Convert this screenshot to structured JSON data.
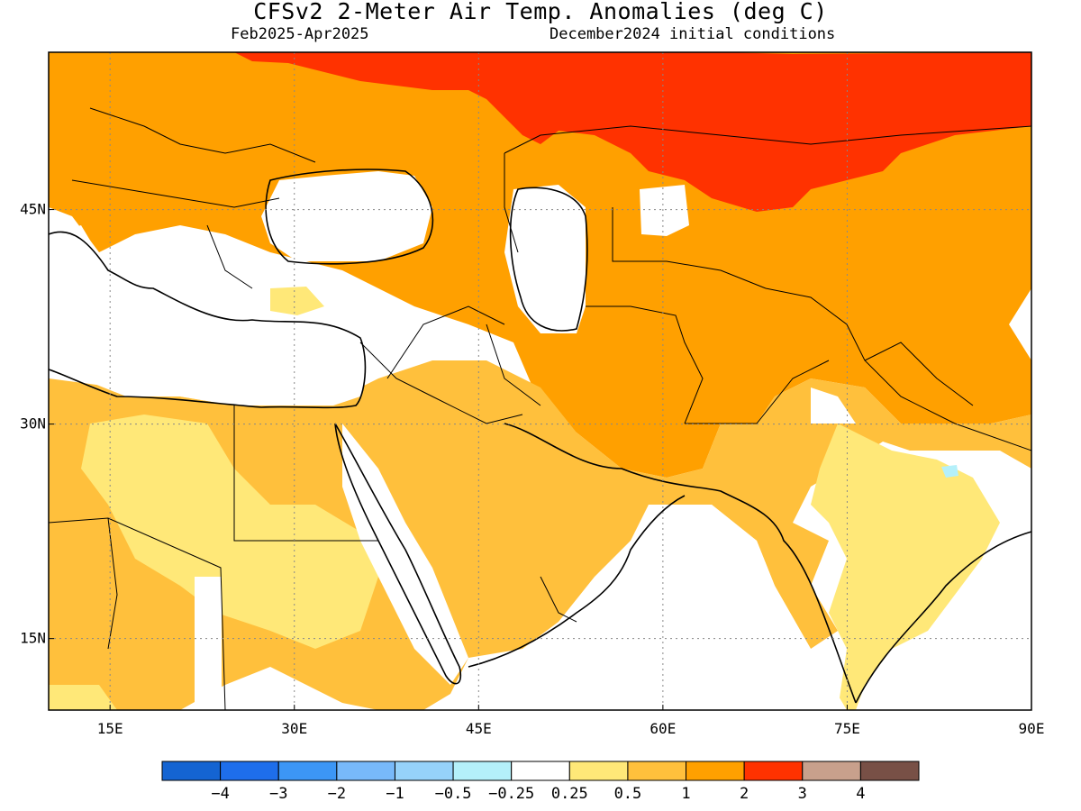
{
  "title": "CFSv2 2-Meter Air Temp. Anomalies (deg C)",
  "period": "Feb2025-Apr2025",
  "initial_conditions": "December2024 initial conditions",
  "map": {
    "lon_ticks": [
      {
        "value": 15,
        "label": "15E"
      },
      {
        "value": 30,
        "label": "30E"
      },
      {
        "value": 45,
        "label": "45E"
      },
      {
        "value": 60,
        "label": "60E"
      },
      {
        "value": 75,
        "label": "75E"
      },
      {
        "value": 90,
        "label": "90E"
      }
    ],
    "lat_ticks": [
      {
        "value": 45,
        "label": "45N"
      },
      {
        "value": 30,
        "label": "30N"
      },
      {
        "value": 15,
        "label": "15N"
      }
    ],
    "lon_range": [
      10,
      90
    ],
    "lat_range": [
      10,
      56
    ],
    "gridlines": "dotted"
  },
  "colorbar": {
    "colors": [
      "#1464d2",
      "#1e6eeb",
      "#3c96f5",
      "#78b9fa",
      "#96d2fa",
      "#b4f0fa",
      "#ffffff",
      "#ffe878",
      "#ffc03c",
      "#ffa000",
      "#ff3200",
      "#c8a08c",
      "#785046"
    ],
    "labels": [
      "−4",
      "−3",
      "−2",
      "−1",
      "−0.5",
      "−0.25",
      "0.25",
      "0.5",
      "1",
      "2",
      "3",
      "4"
    ]
  }
}
